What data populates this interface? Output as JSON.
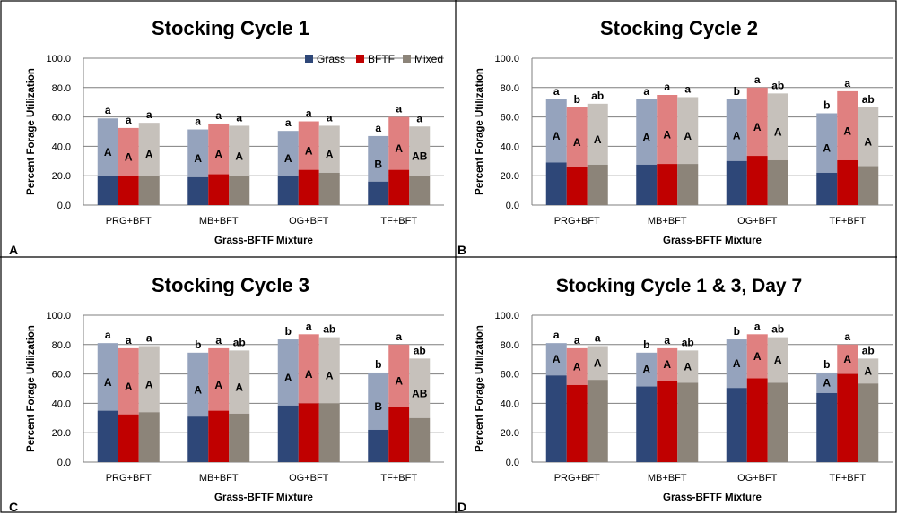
{
  "colors": {
    "grass": "#2e4778",
    "bftf": "#c00000",
    "mixed": "#8c8479",
    "grass_light": "#95a3bd",
    "bftf_light": "#e08080",
    "mixed_light": "#c6c1bb",
    "gridline": "#7f7f7f"
  },
  "legend": {
    "items": [
      "Grass",
      "BFTF",
      "Mixed"
    ],
    "position": "top-right of panel A"
  },
  "chart_data": [
    {
      "type": "bar",
      "panel_label": "A",
      "title": "Stocking Cycle 1",
      "xlabel": "Grass-BFTF Mixture",
      "ylabel": "Percent Forage Utilization",
      "ylim": [
        0,
        100
      ],
      "yticks": [
        "0.0",
        "20.0",
        "40.0",
        "60.0",
        "80.0",
        "100.0"
      ],
      "grid": true,
      "categories": [
        "PRG+BFT",
        "MB+BFT",
        "OG+BFT",
        "TF+BFT"
      ],
      "series": [
        {
          "name": "Grass",
          "lower": [
            20,
            19,
            20,
            16
          ],
          "upper": [
            59,
            51.5,
            50.5,
            47
          ],
          "lower_labels": [
            "A",
            "A",
            "A",
            "B"
          ],
          "upper_labels": [
            "a",
            "a",
            "a",
            "a"
          ]
        },
        {
          "name": "BFTF",
          "lower": [
            20,
            21,
            24,
            24
          ],
          "upper": [
            52.5,
            55.5,
            57,
            60
          ],
          "lower_labels": [
            "A",
            "A",
            "A",
            "A"
          ],
          "upper_labels": [
            "a",
            "a",
            "a",
            "a"
          ]
        },
        {
          "name": "Mixed",
          "lower": [
            20,
            20,
            22,
            20
          ],
          "upper": [
            56,
            54,
            54,
            53.5
          ],
          "lower_labels": [
            "A",
            "A",
            "A",
            "AB"
          ],
          "upper_labels": [
            "a",
            "a",
            "a",
            "a"
          ]
        }
      ]
    },
    {
      "type": "bar",
      "panel_label": "B",
      "title": "Stocking Cycle 2",
      "xlabel": "Grass-BFTF Mixture",
      "ylabel": "Percent Forage Utilization",
      "ylim": [
        0,
        100
      ],
      "yticks": [
        "0.0",
        "20.0",
        "40.0",
        "60.0",
        "80.0",
        "100.0"
      ],
      "grid": true,
      "categories": [
        "PRG+BFT",
        "MB+BFT",
        "OG+BFT",
        "TF+BFT"
      ],
      "series": [
        {
          "name": "Grass",
          "lower": [
            29,
            27.5,
            30,
            22
          ],
          "upper": [
            72,
            72,
            72,
            62.5
          ],
          "lower_labels": [
            "A",
            "A",
            "A",
            "A"
          ],
          "upper_labels": [
            "a",
            "a",
            "b",
            "b"
          ]
        },
        {
          "name": "BFTF",
          "lower": [
            26,
            28,
            33.5,
            30.5
          ],
          "upper": [
            66.5,
            75,
            80,
            77.5
          ],
          "lower_labels": [
            "A",
            "A",
            "A",
            "A"
          ],
          "upper_labels": [
            "b",
            "a",
            "a",
            "a"
          ]
        },
        {
          "name": "Mixed",
          "lower": [
            27.5,
            28,
            30.5,
            26.5
          ],
          "upper": [
            69,
            73.5,
            76,
            66.5
          ],
          "lower_labels": [
            "A",
            "A",
            "A",
            "A"
          ],
          "upper_labels": [
            "ab",
            "a",
            "ab",
            "ab"
          ]
        }
      ]
    },
    {
      "type": "bar",
      "panel_label": "C",
      "title": "Stocking Cycle 3",
      "xlabel": "Grass-BFTF Mixture",
      "ylabel": "Percent Forage Utilization",
      "ylim": [
        0,
        100
      ],
      "yticks": [
        "0.0",
        "20.0",
        "40.0",
        "60.0",
        "80.0",
        "100.0"
      ],
      "grid": true,
      "categories": [
        "PRG+BFT",
        "MB+BFT",
        "OG+BFT",
        "TF+BFT"
      ],
      "series": [
        {
          "name": "Grass",
          "lower": [
            35,
            31,
            38.5,
            22
          ],
          "upper": [
            81,
            74.5,
            83.5,
            61
          ],
          "lower_labels": [
            "A",
            "A",
            "A",
            "B"
          ],
          "upper_labels": [
            "a",
            "b",
            "b",
            "b"
          ]
        },
        {
          "name": "BFTF",
          "lower": [
            32.5,
            35,
            40,
            37.5
          ],
          "upper": [
            77.5,
            77.5,
            87,
            80
          ],
          "lower_labels": [
            "A",
            "A",
            "A",
            "A"
          ],
          "upper_labels": [
            "a",
            "a",
            "a",
            "a"
          ]
        },
        {
          "name": "Mixed",
          "lower": [
            34,
            33,
            40,
            30
          ],
          "upper": [
            79,
            76,
            85,
            70.5
          ],
          "lower_labels": [
            "A",
            "A",
            "A",
            "AB"
          ],
          "upper_labels": [
            "a",
            "ab",
            "ab",
            "ab"
          ]
        }
      ]
    },
    {
      "type": "bar",
      "panel_label": "D",
      "title": "Stocking Cycle 1 & 3, Day 7",
      "xlabel": "Grass-BFTF Mixture",
      "ylabel": "Percent Forage Utilization",
      "ylim": [
        0,
        100
      ],
      "yticks": [
        "0.0",
        "20.0",
        "40.0",
        "60.0",
        "80.0",
        "100.0"
      ],
      "grid": true,
      "categories": [
        "PRG+BFT",
        "MB+BFT",
        "OG+BFT",
        "TF+BFT"
      ],
      "series": [
        {
          "name": "Grass",
          "lower": [
            59,
            51.5,
            50.5,
            47
          ],
          "upper": [
            81,
            74.5,
            83.5,
            61
          ],
          "lower_labels": [
            "A",
            "A",
            "A",
            "A"
          ],
          "upper_labels": [
            "a",
            "b",
            "b",
            "b"
          ]
        },
        {
          "name": "BFTF",
          "lower": [
            52.5,
            55.5,
            57,
            60
          ],
          "upper": [
            77.5,
            77.5,
            87,
            80
          ],
          "lower_labels": [
            "A",
            "A",
            "A",
            "A"
          ],
          "upper_labels": [
            "a",
            "a",
            "a",
            "a"
          ]
        },
        {
          "name": "Mixed",
          "lower": [
            56,
            54,
            54,
            53.5
          ],
          "upper": [
            79,
            76,
            85,
            70.5
          ],
          "lower_labels": [
            "A",
            "A",
            "A",
            "A"
          ],
          "upper_labels": [
            "a",
            "ab",
            "ab",
            "ab"
          ]
        }
      ]
    }
  ]
}
